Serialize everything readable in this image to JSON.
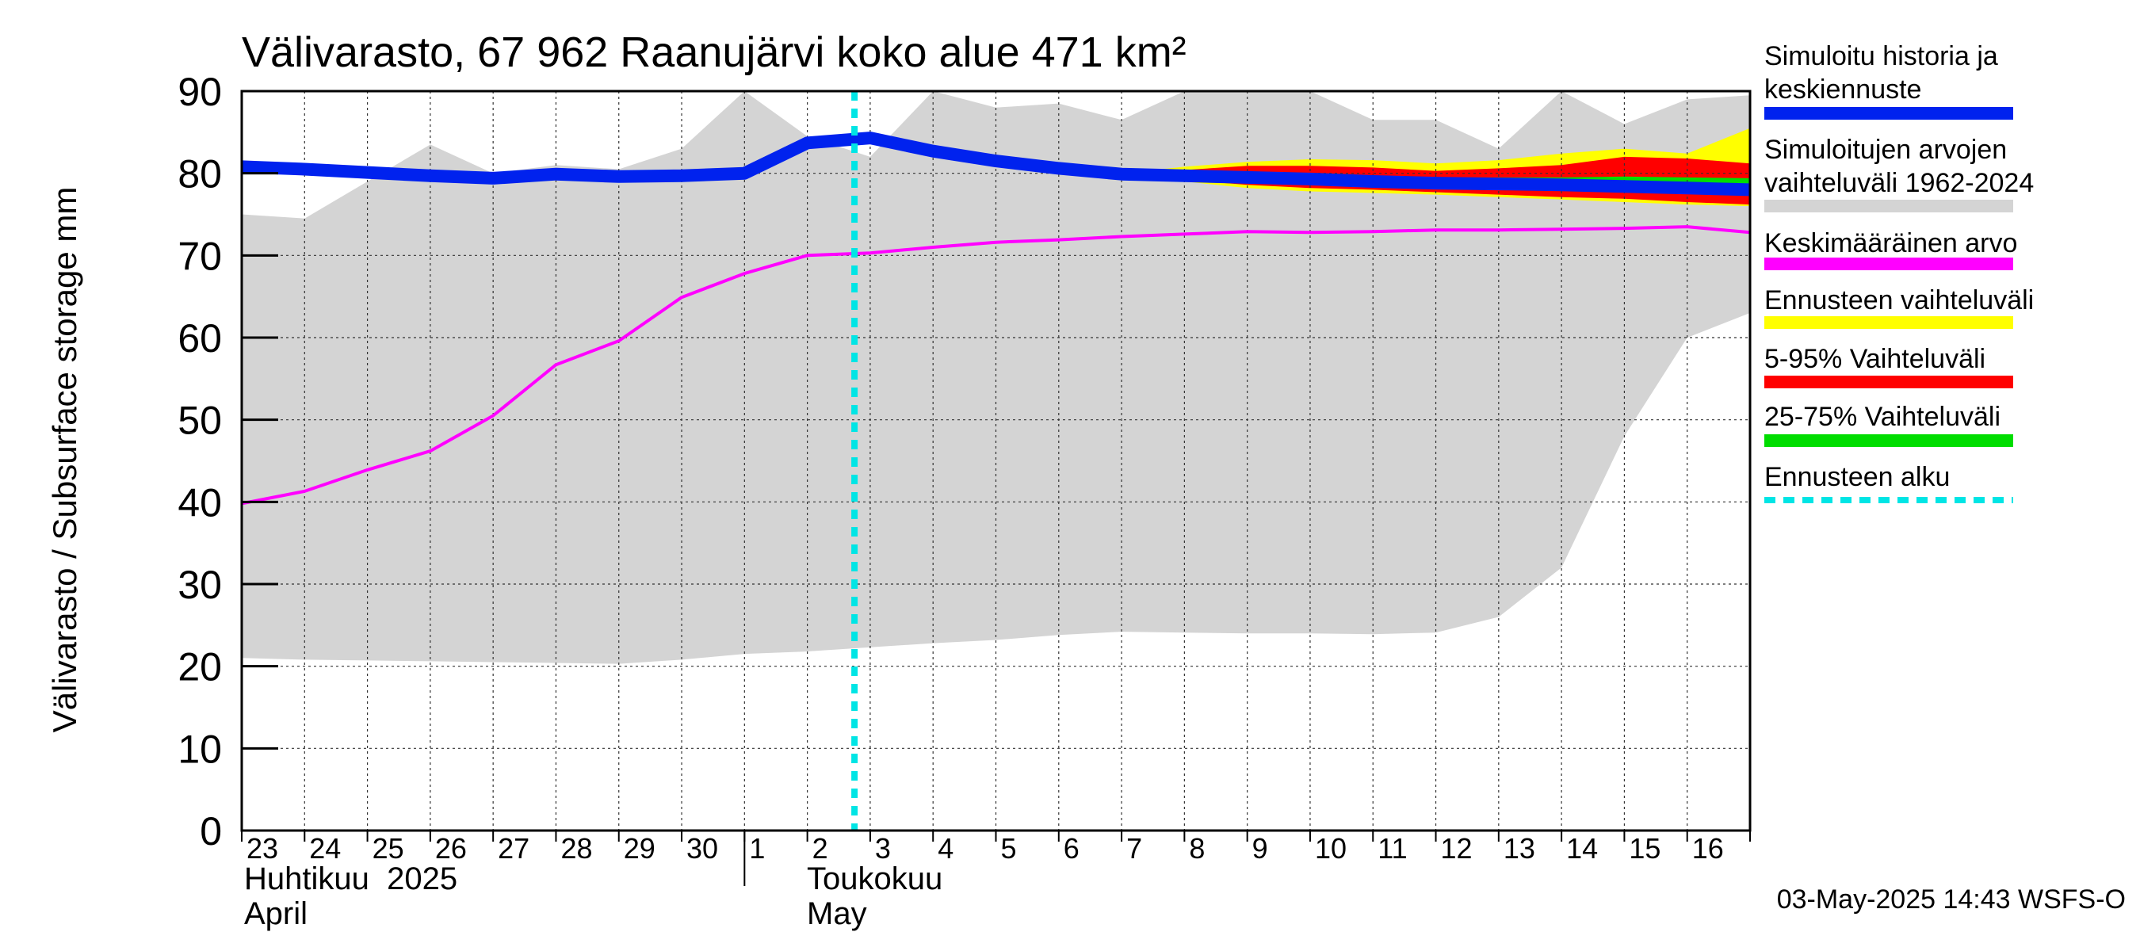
{
  "chart_data": {
    "type": "area",
    "title": "Välivarasto, 67 962 Raanujärvi koko alue 471 km²",
    "ylabel": "Välivarasto / Subsurface storage  mm",
    "ylim": [
      0,
      90
    ],
    "yticks": [
      0,
      10,
      20,
      30,
      40,
      50,
      60,
      70,
      80,
      90
    ],
    "grid": true,
    "legend_position": "right",
    "x_start": "2025-04-23",
    "x_end": "2025-05-16",
    "x_tick_labels": [
      "23",
      "24",
      "25",
      "26",
      "27",
      "28",
      "29",
      "30",
      "1",
      "2",
      "3",
      "4",
      "5",
      "6",
      "7",
      "8",
      "9",
      "10",
      "11",
      "12",
      "13",
      "14",
      "15",
      "16"
    ],
    "month_labels": [
      {
        "fi": "Huhtikuu  2025",
        "en": "April"
      },
      {
        "fi": "Toukokuu",
        "en": "May"
      }
    ],
    "forecast_start": "2025-05-02T18:00",
    "timestamp": "03-May-2025 14:43 WSFS-O",
    "series": [
      {
        "name": "Simuloitujen arvojen vaihteluväli 1962-2024",
        "kind": "band",
        "x": [
          "2025-04-23",
          "2025-04-24",
          "2025-04-25",
          "2025-04-26",
          "2025-04-27",
          "2025-04-28",
          "2025-04-29",
          "2025-04-30",
          "2025-05-01",
          "2025-05-02",
          "2025-05-03",
          "2025-05-04",
          "2025-05-05",
          "2025-05-06",
          "2025-05-07",
          "2025-05-08",
          "2025-05-09",
          "2025-05-10",
          "2025-05-11",
          "2025-05-12",
          "2025-05-13",
          "2025-05-14",
          "2025-05-15",
          "2025-05-16",
          "2025-05-17"
        ],
        "lower": [
          21,
          20.8,
          20.7,
          20.6,
          20.5,
          20.4,
          20.3,
          20.8,
          21.5,
          21.8,
          22.3,
          22.8,
          23.2,
          23.8,
          24.2,
          24.1,
          24.0,
          24.0,
          23.9,
          24.1,
          26.0,
          32.0,
          48.0,
          60.0,
          63.0
        ],
        "upper": [
          75,
          74.5,
          79,
          83.5,
          80,
          81,
          80.5,
          83,
          90,
          84.5,
          82,
          90,
          88,
          88.5,
          86.5,
          90,
          90,
          90,
          86.5,
          86.5,
          83,
          90,
          86,
          89,
          89.5
        ],
        "color": "#d4d4d4"
      },
      {
        "name": "Ennusteen vaihteluväli",
        "kind": "band",
        "x": [
          "2025-05-07",
          "2025-05-08",
          "2025-05-09",
          "2025-05-10",
          "2025-05-11",
          "2025-05-12",
          "2025-05-13",
          "2025-05-14",
          "2025-05-15",
          "2025-05-16",
          "2025-05-17"
        ],
        "lower": [
          79.9,
          79.0,
          78.2,
          77.8,
          77.6,
          77.4,
          77.1,
          76.8,
          76.5,
          76.2,
          76.0
        ],
        "upper": [
          80.0,
          80.8,
          81.4,
          81.7,
          81.6,
          81.2,
          81.6,
          82.4,
          83.0,
          82.4,
          85.5
        ],
        "color": "#ffff00"
      },
      {
        "name": "5-95% Vaihteluväli",
        "kind": "band",
        "x": [
          "2025-05-07",
          "2025-05-08",
          "2025-05-09",
          "2025-05-10",
          "2025-05-11",
          "2025-05-12",
          "2025-05-13",
          "2025-05-14",
          "2025-05-15",
          "2025-05-16",
          "2025-05-17"
        ],
        "lower": [
          79.9,
          79.2,
          78.6,
          78.2,
          78.0,
          77.7,
          77.4,
          77.1,
          76.9,
          76.5,
          76.2
        ],
        "upper": [
          80.0,
          80.4,
          80.9,
          80.9,
          80.7,
          80.3,
          80.6,
          81.0,
          82.0,
          81.8,
          81.2
        ],
        "color": "#ff0000"
      },
      {
        "name": "25-75% Vaihteluväli",
        "kind": "band",
        "x": [
          "2025-05-07",
          "2025-05-08",
          "2025-05-09",
          "2025-05-10",
          "2025-05-11",
          "2025-05-12",
          "2025-05-13",
          "2025-05-14",
          "2025-05-15",
          "2025-05-16",
          "2025-05-17"
        ],
        "lower": [
          79.9,
          79.5,
          79.1,
          78.8,
          78.6,
          78.5,
          78.4,
          78.3,
          78.1,
          77.9,
          77.7
        ],
        "upper": [
          80.0,
          79.9,
          79.8,
          79.7,
          79.6,
          79.5,
          79.5,
          79.5,
          79.6,
          79.5,
          79.4
        ],
        "color": "#00dd00"
      },
      {
        "name": "Keskimääräinen arvo",
        "kind": "line",
        "x": [
          "2025-04-23",
          "2025-04-24",
          "2025-04-25",
          "2025-04-26",
          "2025-04-27",
          "2025-04-28",
          "2025-04-29",
          "2025-04-30",
          "2025-05-01",
          "2025-05-02",
          "2025-05-03",
          "2025-05-04",
          "2025-05-05",
          "2025-05-06",
          "2025-05-07",
          "2025-05-08",
          "2025-05-09",
          "2025-05-10",
          "2025-05-11",
          "2025-05-12",
          "2025-05-13",
          "2025-05-14",
          "2025-05-15",
          "2025-05-16",
          "2025-05-17"
        ],
        "values": [
          39.8,
          41.3,
          43.9,
          46.2,
          50.5,
          56.7,
          59.6,
          64.9,
          67.8,
          70.0,
          70.3,
          71.0,
          71.6,
          71.9,
          72.3,
          72.6,
          72.9,
          72.8,
          72.9,
          73.1,
          73.1,
          73.2,
          73.3,
          73.5,
          72.8
        ],
        "color": "#ff00ff"
      },
      {
        "name": "Simuloitu historia ja keskiennuste",
        "kind": "line",
        "x": [
          "2025-04-23",
          "2025-04-24",
          "2025-04-25",
          "2025-04-26",
          "2025-04-27",
          "2025-04-28",
          "2025-04-29",
          "2025-04-30",
          "2025-05-01",
          "2025-05-02",
          "2025-05-03",
          "2025-05-04",
          "2025-05-05",
          "2025-05-06",
          "2025-05-07",
          "2025-05-08",
          "2025-05-09",
          "2025-05-10",
          "2025-05-11",
          "2025-05-12",
          "2025-05-13",
          "2025-05-14",
          "2025-05-15",
          "2025-05-16",
          "2025-05-17"
        ],
        "values": [
          80.8,
          80.5,
          80.1,
          79.7,
          79.4,
          79.9,
          79.6,
          79.7,
          80.0,
          83.7,
          84.3,
          82.7,
          81.5,
          80.6,
          79.9,
          79.7,
          79.5,
          79.3,
          79.0,
          78.8,
          78.7,
          78.6,
          78.4,
          78.2,
          78.0
        ],
        "color": "#0022ee"
      }
    ],
    "legend": [
      {
        "label": "Simuloitu historia ja keskiennuste",
        "color": "#0022ee",
        "style": "solid"
      },
      {
        "label": "Simuloitujen arvojen vaihteluväli 1962-2024",
        "color": "#d4d4d4",
        "style": "solid"
      },
      {
        "label": "Keskimääräinen arvo",
        "color": "#ff00ff",
        "style": "solid"
      },
      {
        "label": "Ennusteen vaihteluväli",
        "color": "#ffff00",
        "style": "solid"
      },
      {
        "label": "5-95% Vaihteluväli",
        "color": "#ff0000",
        "style": "solid"
      },
      {
        "label": "25-75% Vaihteluväli",
        "color": "#00dd00",
        "style": "solid"
      },
      {
        "label": "Ennusteen alku",
        "color": "#00e5e5",
        "style": "dashed"
      }
    ]
  }
}
